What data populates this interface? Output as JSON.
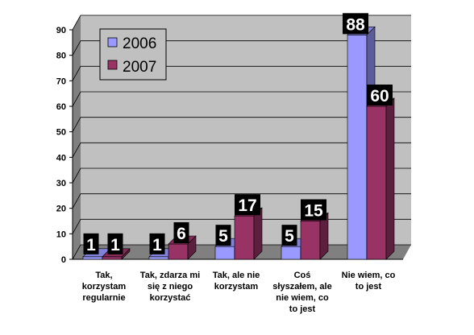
{
  "chart_data": {
    "type": "bar",
    "categories": [
      [
        "Tak,",
        "korzystam",
        "regularnie"
      ],
      [
        "Tak, zdarza mi",
        "się z niego",
        "korzystać"
      ],
      [
        "Tak, ale nie",
        "korzystam"
      ],
      [
        "Coś",
        "słyszałem, ale",
        "nie wiem, co",
        "to jest"
      ],
      [
        "Nie wiem, co",
        "to jest"
      ]
    ],
    "series": [
      {
        "name": "2006",
        "values": [
          1,
          1,
          5,
          5,
          88
        ],
        "color": "#9999ff"
      },
      {
        "name": "2007",
        "values": [
          1,
          6,
          17,
          15,
          60
        ],
        "color": "#993366"
      }
    ],
    "ylim": [
      0,
      90
    ],
    "yticks": [
      0,
      10,
      20,
      30,
      40,
      50,
      60,
      70,
      80,
      90
    ],
    "grid": true,
    "legend_position": "top-left",
    "colors": {
      "wall": "#c0c0c0",
      "side_wall": "#808080",
      "floor": "#808080",
      "label_box": "#000000"
    }
  }
}
